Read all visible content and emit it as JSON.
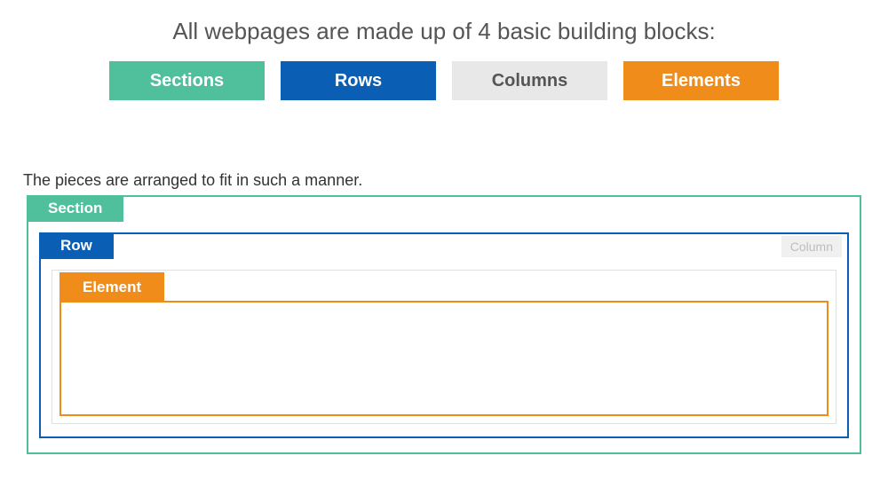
{
  "heading": "All webpages are made up of 4 basic building blocks:",
  "blocks": [
    {
      "label": "Sections",
      "bg": "#4fbf9c",
      "fg": "#ffffff"
    },
    {
      "label": "Rows",
      "bg": "#0a5fb5",
      "fg": "#ffffff"
    },
    {
      "label": "Columns",
      "bg": "#e8e8e8",
      "fg": "#555555"
    },
    {
      "label": "Elements",
      "bg": "#f08c1a",
      "fg": "#ffffff"
    }
  ],
  "subtext": "The pieces are arranged to fit in such a manner.",
  "diagram": {
    "section": {
      "label": "Section",
      "border": "#4fbf9c",
      "tab_bg": "#4fbf9c",
      "tab_fg": "#ffffff"
    },
    "row": {
      "label": "Row",
      "border": "#0a5fb5",
      "tab_bg": "#0a5fb5",
      "tab_fg": "#ffffff"
    },
    "column": {
      "label": "Column",
      "border": "#e0e0e0",
      "label_bg": "#f0f0f0",
      "label_fg": "#bdbdbd"
    },
    "element": {
      "label": "Element",
      "border": "#f08c1a",
      "tab_bg": "#f08c1a",
      "tab_fg": "#ffffff"
    }
  }
}
